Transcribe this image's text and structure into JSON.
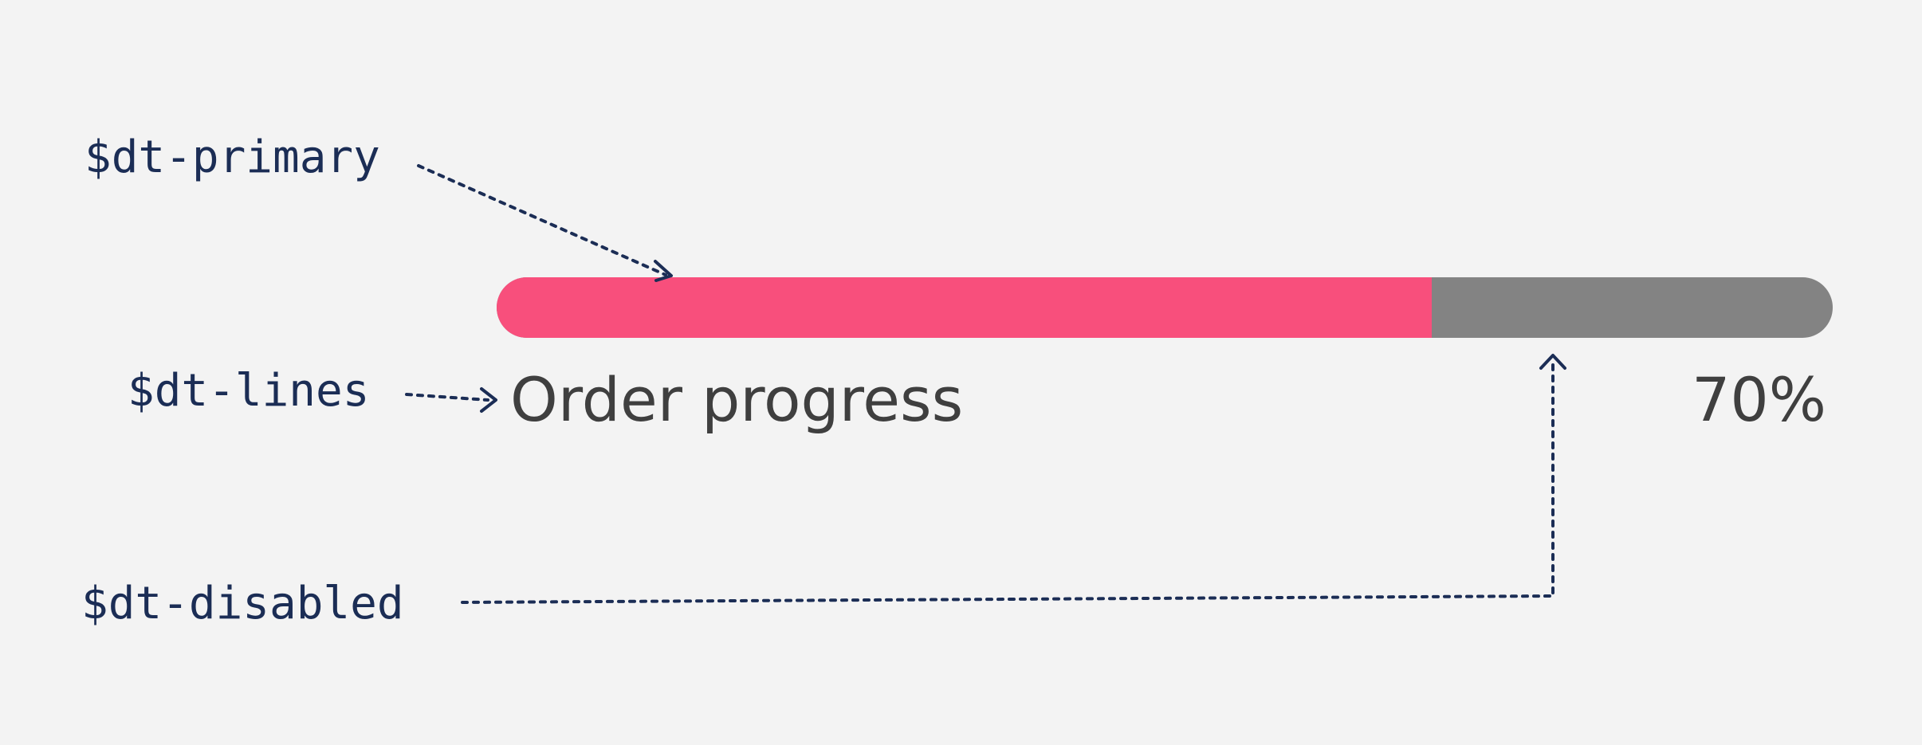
{
  "tokens": {
    "primary": "$dt-primary",
    "lines": "$dt-lines",
    "disabled": "$dt-disabled"
  },
  "progress": {
    "title": "Order progress",
    "percent_label": "70%",
    "value": 0.7
  },
  "colors": {
    "background": "#f3f3f3",
    "primary": "#f84f7c",
    "disabled": "#838383",
    "lines": "#3f3f3f",
    "annotation": "#1b2d55"
  }
}
